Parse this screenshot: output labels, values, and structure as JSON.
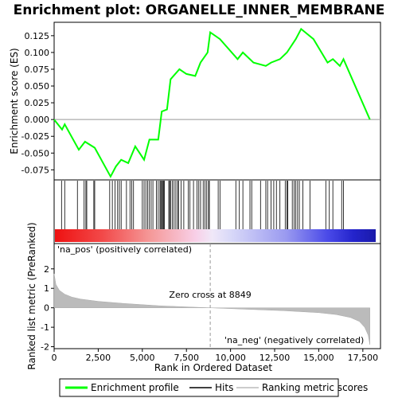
{
  "chart_data": {
    "type": "line",
    "title": "Enrichment plot: ORGANELLE_INNER_MEMBRANE",
    "top_panel": {
      "ylabel": "Enrichment score (ES)",
      "ylim": [
        -0.09,
        0.145
      ],
      "yticks": [
        -0.075,
        -0.05,
        -0.025,
        0.0,
        0.025,
        0.05,
        0.075,
        0.1,
        0.125
      ],
      "ytick_labels": [
        "-0.075",
        "-0.050",
        "-0.025",
        "0.000",
        "0.025",
        "0.050",
        "0.075",
        "0.100",
        "0.125"
      ],
      "series": [
        {
          "name": "Enrichment profile",
          "color": "#00ff00",
          "x": [
            0,
            450,
            600,
            1400,
            1750,
            2300,
            3200,
            3500,
            3800,
            4200,
            4600,
            5100,
            5400,
            5900,
            6100,
            6400,
            6600,
            7100,
            7500,
            8000,
            8300,
            8700,
            8850,
            9400,
            10400,
            10700,
            11300,
            12000,
            12300,
            12800,
            13200,
            13700,
            14000,
            14700,
            15500,
            15800,
            16200,
            16400,
            17900
          ],
          "y": [
            0.0,
            -0.015,
            -0.007,
            -0.045,
            -0.033,
            -0.042,
            -0.085,
            -0.07,
            -0.06,
            -0.065,
            -0.04,
            -0.06,
            -0.03,
            -0.03,
            0.012,
            0.015,
            0.06,
            0.075,
            0.068,
            0.065,
            0.085,
            0.1,
            0.13,
            0.12,
            0.09,
            0.1,
            0.085,
            0.08,
            0.085,
            0.09,
            0.1,
            0.12,
            0.135,
            0.12,
            0.085,
            0.09,
            0.08,
            0.09,
            0.0
          ]
        }
      ]
    },
    "hits_panel": {
      "hit_positions": [
        420,
        600,
        1320,
        1700,
        1800,
        1850,
        2250,
        2300,
        3150,
        3300,
        3450,
        3600,
        3700,
        3800,
        4100,
        4300,
        4400,
        4500,
        5000,
        5100,
        5200,
        5300,
        5400,
        5500,
        5600,
        5800,
        5900,
        6000,
        6050,
        6100,
        6150,
        6200,
        6250,
        6500,
        6550,
        6600,
        6700,
        6800,
        6900,
        7000,
        7050,
        7200,
        7350,
        7600,
        7700,
        7900,
        8100,
        8200,
        8300,
        8450,
        8550,
        8650,
        8750,
        8800,
        9300,
        9400,
        10300,
        10500,
        10700,
        11100,
        11200,
        11700,
        12000,
        12100,
        12300,
        12450,
        12600,
        12800,
        13100,
        13200,
        13250,
        13500,
        13600,
        13700,
        13800,
        13900,
        14100,
        14500,
        15400,
        15600,
        15800,
        16300,
        16400
      ]
    },
    "bottom_panel": {
      "ylabel": "Ranked list metric (PreRanked)",
      "xlabel": "Rank in Ordered Dataset",
      "xlim": [
        0,
        18500
      ],
      "ylim": [
        -2.1,
        3.3
      ],
      "yticks": [
        -2,
        -1,
        0,
        1,
        2
      ],
      "ytick_labels": [
        "-2",
        "-1",
        "0",
        "1",
        "2"
      ],
      "xticks": [
        0,
        2500,
        5000,
        7500,
        10000,
        12500,
        15000,
        17500
      ],
      "xtick_labels": [
        "0",
        "2,500",
        "5,000",
        "7,500",
        "10,000",
        "12,500",
        "15,000",
        "17,500"
      ],
      "metric_points": {
        "x": [
          0,
          100,
          300,
          600,
          1000,
          1500,
          2500,
          4000,
          6000,
          8849,
          11000,
          13000,
          15000,
          16000,
          16800,
          17300,
          17600,
          17800,
          17900
        ],
        "y": [
          1.75,
          1.2,
          0.9,
          0.7,
          0.55,
          0.45,
          0.33,
          0.22,
          0.1,
          0.0,
          -0.08,
          -0.15,
          -0.25,
          -0.35,
          -0.5,
          -0.7,
          -1.0,
          -1.4,
          -1.9
        ]
      },
      "zero_cross_label": "Zero cross at 8849",
      "zero_cross": 8849,
      "pos_label": "'na_pos' (positively correlated)",
      "neg_label": "'na_neg' (negatively correlated)"
    },
    "legend": [
      {
        "label": "Enrichment profile",
        "color": "#00ff00"
      },
      {
        "label": "Hits",
        "color": "#000000"
      },
      {
        "label": "Ranking metric scores",
        "color": "#bbbbbb"
      }
    ],
    "colors": {
      "profile": "#00ff00",
      "pos_label": "#cc0000",
      "neg_label": "#0000cc",
      "metric_fill": "#bbbbbb"
    }
  }
}
